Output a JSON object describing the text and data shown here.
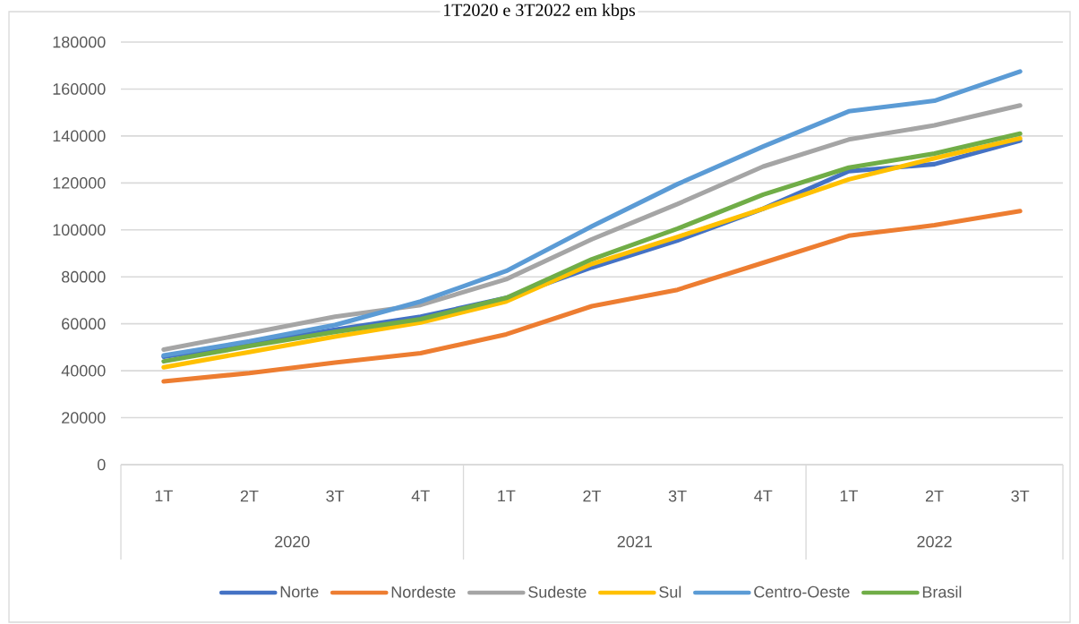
{
  "chart_data": {
    "type": "line",
    "title": "1T2020 e 3T2022 em kbps",
    "categories": [
      "1T",
      "2T",
      "3T",
      "4T",
      "1T",
      "2T",
      "3T",
      "4T",
      "1T",
      "2T",
      "3T"
    ],
    "annotations": [
      "2020",
      "2021",
      "2022"
    ],
    "series": [
      {
        "name": "Norte",
        "color": "#4472c4",
        "values": [
          46000,
          51500,
          57500,
          63000,
          71000,
          84000,
          95500,
          109000,
          125000,
          128000,
          138000
        ]
      },
      {
        "name": "Nordeste",
        "color": "#ed7d31",
        "values": [
          35500,
          39000,
          43500,
          47500,
          55500,
          67500,
          74500,
          86000,
          97500,
          102000,
          108000
        ]
      },
      {
        "name": "Sudeste",
        "color": "#a5a5a5",
        "values": [
          49000,
          56000,
          63000,
          68000,
          79000,
          96000,
          111000,
          127000,
          138500,
          144500,
          153000
        ]
      },
      {
        "name": "Sul",
        "color": "#ffc000",
        "values": [
          41500,
          48000,
          54500,
          60500,
          69500,
          85500,
          97000,
          109000,
          121500,
          130500,
          139000
        ]
      },
      {
        "name": "Centro-Oeste",
        "color": "#5b9bd5",
        "values": [
          46500,
          52500,
          59500,
          69500,
          82500,
          101500,
          119500,
          135500,
          150500,
          155000,
          167500
        ]
      },
      {
        "name": "Brasil",
        "color": "#70ad47",
        "values": [
          44000,
          50500,
          56500,
          62000,
          71000,
          87500,
          100500,
          115000,
          126500,
          132500,
          141000
        ]
      }
    ],
    "ylim": [
      0,
      180000
    ],
    "yticks": [
      0,
      20000,
      40000,
      60000,
      80000,
      100000,
      120000,
      140000,
      160000,
      180000
    ],
    "grid": "y",
    "legend": "bottom"
  }
}
